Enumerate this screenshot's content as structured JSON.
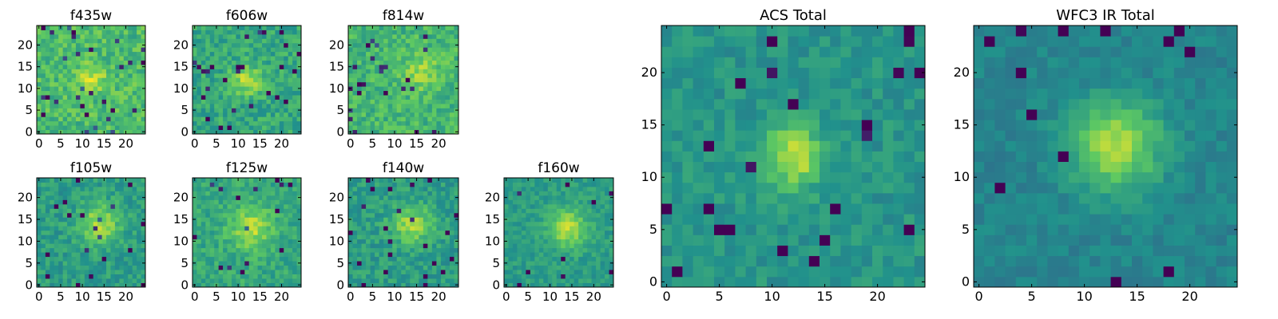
{
  "figure": {
    "layout": "two rows of small band panels on the left, two large total panels on the right"
  },
  "colormap": {
    "name": "viridis",
    "stops": [
      "#440154",
      "#3b528b",
      "#21918c",
      "#5ec962",
      "#fde725"
    ]
  },
  "chart_data": [
    {
      "type": "heatmap",
      "title": "f435w",
      "grid": [
        25,
        25
      ],
      "xlim": [
        -0.5,
        24.5
      ],
      "ylim": [
        -0.5,
        24.5
      ],
      "xticks": [
        0,
        5,
        10,
        15,
        20
      ],
      "yticks": [
        0,
        5,
        10,
        15,
        20
      ],
      "source": [
        12,
        12
      ],
      "sigma": 2.2,
      "peak": 0.25,
      "base": 0.68,
      "noise": 0.26,
      "outliers": 0.04,
      "seed": 11
    },
    {
      "type": "heatmap",
      "title": "f606w",
      "grid": [
        25,
        25
      ],
      "xlim": [
        -0.5,
        24.5
      ],
      "ylim": [
        -0.5,
        24.5
      ],
      "xticks": [
        0,
        5,
        10,
        15,
        20
      ],
      "yticks": [
        0,
        5,
        10,
        15,
        20
      ],
      "source": [
        12,
        12
      ],
      "sigma": 2.4,
      "peak": 0.3,
      "base": 0.6,
      "noise": 0.24,
      "outliers": 0.04,
      "seed": 23
    },
    {
      "type": "heatmap",
      "title": "f814w",
      "grid": [
        25,
        25
      ],
      "xlim": [
        -0.5,
        24.5
      ],
      "ylim": [
        -0.5,
        24.5
      ],
      "xticks": [
        0,
        5,
        10,
        15,
        20
      ],
      "yticks": [
        0,
        5,
        10,
        15,
        20
      ],
      "source": [
        16,
        14
      ],
      "sigma": 3.0,
      "peak": 0.18,
      "base": 0.66,
      "noise": 0.24,
      "outliers": 0.04,
      "seed": 37
    },
    {
      "type": "heatmap",
      "title": "f105w",
      "grid": [
        25,
        25
      ],
      "xlim": [
        -0.5,
        24.5
      ],
      "ylim": [
        -0.5,
        24.5
      ],
      "xticks": [
        0,
        5,
        10,
        15,
        20
      ],
      "yticks": [
        0,
        5,
        10,
        15,
        20
      ],
      "source": [
        14,
        14
      ],
      "sigma": 3.2,
      "peak": 0.32,
      "base": 0.55,
      "noise": 0.2,
      "outliers": 0.03,
      "seed": 41
    },
    {
      "type": "heatmap",
      "title": "f125w",
      "grid": [
        25,
        25
      ],
      "xlim": [
        -0.5,
        24.5
      ],
      "ylim": [
        -0.5,
        24.5
      ],
      "xticks": [
        0,
        5,
        10,
        15,
        20
      ],
      "yticks": [
        0,
        5,
        10,
        15,
        20
      ],
      "source": [
        13,
        13
      ],
      "sigma": 3.4,
      "peak": 0.28,
      "base": 0.6,
      "noise": 0.2,
      "outliers": 0.03,
      "seed": 53
    },
    {
      "type": "heatmap",
      "title": "f140w",
      "grid": [
        25,
        25
      ],
      "xlim": [
        -0.5,
        24.5
      ],
      "ylim": [
        -0.5,
        24.5
      ],
      "xticks": [
        0,
        5,
        10,
        15,
        20
      ],
      "yticks": [
        0,
        5,
        10,
        15,
        20
      ],
      "source": [
        14,
        14
      ],
      "sigma": 3.2,
      "peak": 0.3,
      "base": 0.55,
      "noise": 0.2,
      "outliers": 0.03,
      "seed": 67
    },
    {
      "type": "heatmap",
      "title": "f160w",
      "grid": [
        25,
        25
      ],
      "xlim": [
        -0.5,
        24.5
      ],
      "ylim": [
        -0.5,
        24.5
      ],
      "xticks": [
        0,
        5,
        10,
        15,
        20
      ],
      "yticks": [
        0,
        5,
        10,
        15,
        20
      ],
      "source": [
        14,
        13
      ],
      "sigma": 3.0,
      "peak": 0.35,
      "base": 0.55,
      "noise": 0.16,
      "outliers": 0.02,
      "seed": 79
    },
    {
      "type": "heatmap",
      "title": "ACS Total",
      "grid": [
        25,
        25
      ],
      "xlim": [
        -0.5,
        24.5
      ],
      "ylim": [
        -0.5,
        24.5
      ],
      "xticks": [
        0,
        5,
        10,
        15,
        20
      ],
      "yticks": [
        0,
        5,
        10,
        15,
        20
      ],
      "source": [
        12,
        12
      ],
      "sigma": 2.0,
      "peak": 0.4,
      "base": 0.52,
      "noise": 0.16,
      "outliers": 0.03,
      "seed": 89
    },
    {
      "type": "heatmap",
      "title": "WFC3 IR Total",
      "grid": [
        25,
        25
      ],
      "xlim": [
        -0.5,
        24.5
      ],
      "ylim": [
        -0.5,
        24.5
      ],
      "xticks": [
        0,
        5,
        10,
        15,
        20
      ],
      "yticks": [
        0,
        5,
        10,
        15,
        20
      ],
      "source": [
        13,
        13
      ],
      "sigma": 3.0,
      "peak": 0.42,
      "base": 0.45,
      "noise": 0.12,
      "outliers": 0.02,
      "seed": 97
    }
  ]
}
